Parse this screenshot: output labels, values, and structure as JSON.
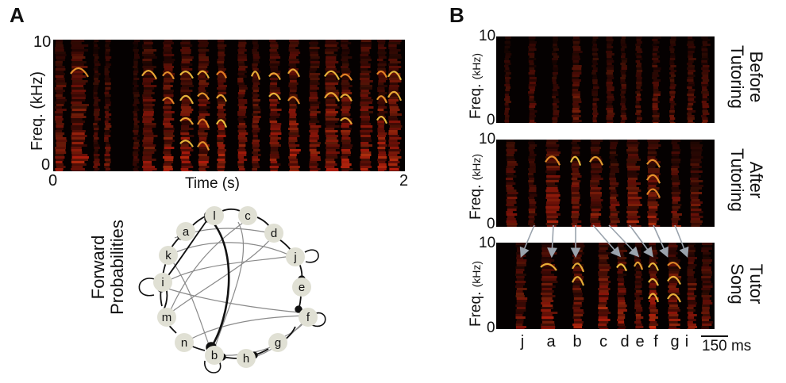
{
  "panel_a": {
    "letter": "A",
    "y_label": "Freq. (kHz)",
    "y_ticks": [
      "10",
      "0"
    ],
    "x_ticks": [
      "0",
      "2"
    ],
    "x_label": "Time (s)"
  },
  "graph": {
    "side_label": [
      "Forward",
      "Probabilities"
    ],
    "nodes": [
      "l",
      "c",
      "d",
      "j",
      "e",
      "f",
      "g",
      "h",
      "b",
      "n",
      "m",
      "i",
      "k",
      "a"
    ],
    "colors": {
      "node_fill": "#e0e0d4",
      "strong_edge": "#111111",
      "weak_edge": "#8a8a8a"
    }
  },
  "panel_b": {
    "letter": "B",
    "rows": [
      {
        "y_label": "Freq.",
        "y_unit": "(kHz)",
        "y_top": "10",
        "y_bottom": "0",
        "side": [
          "Before",
          "Tutoring"
        ]
      },
      {
        "y_label": "Freq.",
        "y_unit": "(kHz)",
        "y_top": "10",
        "y_bottom": "0",
        "side": [
          "After",
          "Tutoring"
        ]
      },
      {
        "y_label": "Freq.",
        "y_unit": "(kHz)",
        "y_top": "10",
        "y_bottom": "0",
        "side": [
          "Tutor",
          "Song"
        ]
      }
    ],
    "segment_labels": [
      "j",
      "a",
      "b",
      "c",
      "d",
      "e",
      "f",
      "g",
      "i"
    ],
    "scale_bar": "150 ms"
  },
  "colors": {
    "spectrogram_bg": "#050101",
    "hot_low": "#c81e0e",
    "hot_high": "#ffd84a",
    "arrow": "#9aa3ad"
  }
}
